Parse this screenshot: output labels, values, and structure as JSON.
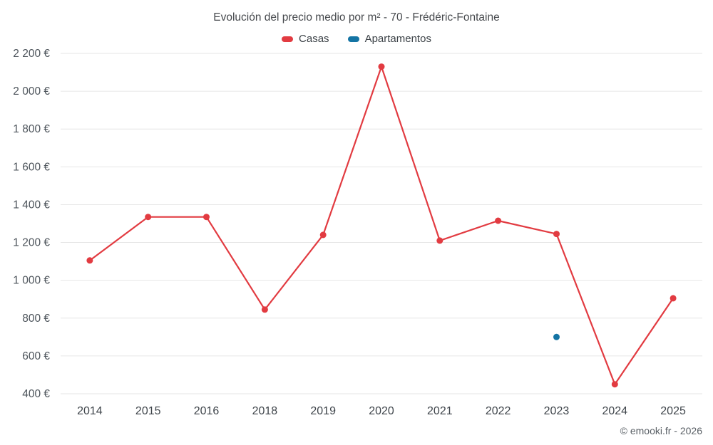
{
  "title": "Evolución del precio medio por m² - 70 - Frédéric-Fontaine",
  "legend": [
    {
      "label": "Casas",
      "color": "#e23b41"
    },
    {
      "label": "Apartamentos",
      "color": "#1474a4"
    }
  ],
  "footer": "© emooki.fr - 2026",
  "colors": {
    "grid": "#e6e6e6",
    "tick_text": "#4d545b",
    "axis_text": "#3f454b"
  },
  "chart_data": {
    "type": "line",
    "title": "Evolución del precio medio por m² - 70 - Frédéric-Fontaine",
    "xlabel": "",
    "ylabel": "",
    "categories": [
      "2014",
      "2015",
      "2016",
      "2018",
      "2019",
      "2020",
      "2021",
      "2022",
      "2023",
      "2024",
      "2025"
    ],
    "series": [
      {
        "name": "Casas",
        "color": "#e23b41",
        "values": [
          1105,
          1335,
          1335,
          845,
          1240,
          2130,
          1210,
          1315,
          1245,
          450,
          905
        ]
      },
      {
        "name": "Apartamentos",
        "color": "#1474a4",
        "values": [
          null,
          null,
          null,
          null,
          null,
          null,
          null,
          null,
          700,
          null,
          null
        ]
      }
    ],
    "ylim": [
      400,
      2200
    ],
    "y_ticks": [
      400,
      600,
      800,
      1000,
      1200,
      1400,
      1600,
      1800,
      2000,
      2200
    ],
    "y_tick_suffix": " €",
    "grid": true,
    "legend_position": "top"
  }
}
